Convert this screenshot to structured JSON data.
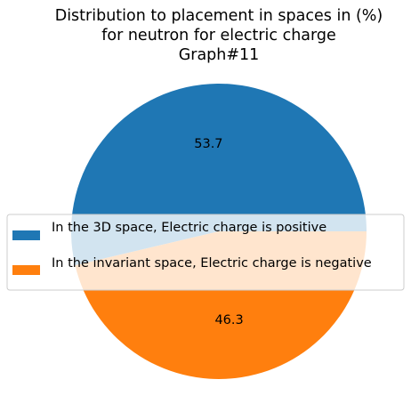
{
  "chart_data": {
    "type": "pie",
    "title_lines": [
      "Distribution to placement in spaces in (%)",
      "for neutron for electric charge",
      "Graph#11"
    ],
    "slices": [
      {
        "label": "In the 3D space, Electric charge is positive",
        "value": 53.7,
        "value_label": "53.7",
        "color": "#1f77b4"
      },
      {
        "label": "In the invariant space, Electric charge is negative",
        "value": 46.3,
        "value_label": "46.3",
        "color": "#ff7f0e"
      }
    ],
    "legend_placement": "center"
  }
}
